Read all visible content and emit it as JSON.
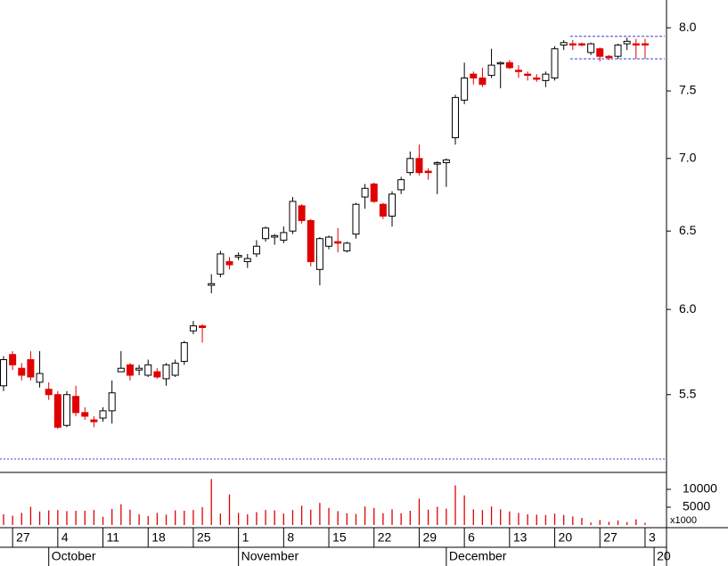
{
  "chart_data": {
    "type": "candlestick",
    "log_scale": true,
    "ylim": [
      5.08,
      8.23
    ],
    "yticks": [
      5.5,
      {
        "value": 6,
        "label": "6.0"
      },
      6.5,
      {
        "value": 7,
        "label": "7.0"
      },
      7.5,
      {
        "value": 8,
        "label": "8.0"
      }
    ],
    "up_color": "#ffffff",
    "down_color": "#e00000",
    "open": [
      5.55,
      5.73,
      5.65,
      5.7,
      5.57,
      5.53,
      5.5,
      5.33,
      5.49,
      5.4,
      5.36,
      5.37,
      5.41,
      5.63,
      5.67,
      5.64,
      5.61,
      5.63,
      5.59,
      5.61,
      5.69,
      5.87,
      5.9,
      6.15,
      6.22,
      6.3,
      6.33,
      6.3,
      6.35,
      6.45,
      6.46,
      6.44,
      6.5,
      6.67,
      6.57,
      6.25,
      6.4,
      6.43,
      6.37,
      6.48,
      6.73,
      6.82,
      6.68,
      6.6,
      6.78,
      6.9,
      7.0,
      6.91,
      6.96,
      6.97,
      7.15,
      7.43,
      7.63,
      7.6,
      7.62,
      7.71,
      7.72,
      7.66,
      7.63,
      7.6,
      7.58,
      7.6,
      7.86,
      7.87,
      7.87,
      7.8,
      7.83,
      7.77,
      7.77,
      7.87,
      7.87,
      7.87
    ],
    "high": [
      5.72,
      5.75,
      5.68,
      5.75,
      5.75,
      5.57,
      5.52,
      5.52,
      5.55,
      5.43,
      5.38,
      5.43,
      5.58,
      5.75,
      5.68,
      5.67,
      5.7,
      5.65,
      5.68,
      5.7,
      5.81,
      5.93,
      5.91,
      6.22,
      6.37,
      6.33,
      6.36,
      6.35,
      6.44,
      6.53,
      6.48,
      6.53,
      6.73,
      6.68,
      6.58,
      6.46,
      6.47,
      6.52,
      6.43,
      6.69,
      6.82,
      6.83,
      6.69,
      6.77,
      6.87,
      7.05,
      7.1,
      6.93,
      6.98,
      7.0,
      7.47,
      7.72,
      7.65,
      7.68,
      7.83,
      7.73,
      7.74,
      7.7,
      7.65,
      7.63,
      7.65,
      7.85,
      7.9,
      7.9,
      7.88,
      7.88,
      7.84,
      7.78,
      7.87,
      7.92,
      7.91,
      7.91
    ],
    "low": [
      5.52,
      5.64,
      5.58,
      5.58,
      5.54,
      5.47,
      5.31,
      5.32,
      5.38,
      5.36,
      5.32,
      5.35,
      5.34,
      5.63,
      5.58,
      5.61,
      5.6,
      5.59,
      5.55,
      5.6,
      5.67,
      5.85,
      5.8,
      6.1,
      6.2,
      6.25,
      6.31,
      6.26,
      6.33,
      6.43,
      6.41,
      6.42,
      6.48,
      6.55,
      6.27,
      6.15,
      6.38,
      6.36,
      6.36,
      6.45,
      6.65,
      6.69,
      6.58,
      6.53,
      6.75,
      6.88,
      6.88,
      6.85,
      6.75,
      6.8,
      7.1,
      7.4,
      7.55,
      7.53,
      7.6,
      7.52,
      7.67,
      7.6,
      7.58,
      7.57,
      7.53,
      7.58,
      7.82,
      7.82,
      7.85,
      7.78,
      7.73,
      7.74,
      7.75,
      7.82,
      7.75,
      7.75
    ],
    "close": [
      5.7,
      5.67,
      5.61,
      5.6,
      5.62,
      5.5,
      5.32,
      5.5,
      5.4,
      5.38,
      5.35,
      5.41,
      5.51,
      5.65,
      5.61,
      5.65,
      5.67,
      5.6,
      5.67,
      5.68,
      5.8,
      5.9,
      5.89,
      6.16,
      6.35,
      6.28,
      6.34,
      6.32,
      6.4,
      6.52,
      6.47,
      6.49,
      6.7,
      6.57,
      6.3,
      6.45,
      6.46,
      6.42,
      6.42,
      6.68,
      6.79,
      6.7,
      6.6,
      6.75,
      6.85,
      7.0,
      6.9,
      6.9,
      6.97,
      6.99,
      7.45,
      7.6,
      7.6,
      7.55,
      7.7,
      7.72,
      7.68,
      7.65,
      7.62,
      7.59,
      7.63,
      7.83,
      7.88,
      7.86,
      7.86,
      7.87,
      7.77,
      7.76,
      7.86,
      7.89,
      7.86,
      7.86
    ],
    "channel_levels": [
      7.75,
      7.93
    ],
    "support_level": 5.15,
    "volume": [
      3000,
      2600,
      3400,
      5100,
      3800,
      4100,
      4200,
      3900,
      4000,
      4000,
      4200,
      2300,
      4500,
      5800,
      4300,
      3000,
      2500,
      3400,
      2900,
      4100,
      4000,
      4200,
      5000,
      12900,
      3200,
      8600,
      3400,
      3000,
      3600,
      4200,
      4100,
      3200,
      4200,
      5400,
      4300,
      6200,
      4800,
      3900,
      3300,
      3100,
      5200,
      4800,
      3300,
      4400,
      3300,
      4000,
      7400,
      4300,
      5100,
      4600,
      11100,
      8300,
      4400,
      4200,
      5200,
      4400,
      3800,
      3400,
      3000,
      2900,
      2800,
      3200,
      2800,
      2400,
      2000,
      700,
      1400,
      900,
      1300,
      800,
      1600,
      600
    ],
    "volume_ylim": [
      0,
      14750
    ],
    "volume_yticks": [
      5000,
      10000
    ],
    "volume_unit": "x1000",
    "xticks": [
      {
        "value": 1,
        "label": "27"
      },
      {
        "value": 6,
        "label": "4"
      },
      {
        "value": 11,
        "label": "11"
      },
      {
        "value": 16,
        "label": "18"
      },
      {
        "value": 21,
        "label": "25"
      },
      {
        "value": 26,
        "label": "1"
      },
      {
        "value": 31,
        "label": "8"
      },
      {
        "value": 36,
        "label": "15"
      },
      {
        "value": 41,
        "label": "22"
      },
      {
        "value": 46,
        "label": "29"
      },
      {
        "value": 51,
        "label": "6"
      },
      {
        "value": 56,
        "label": "13"
      },
      {
        "value": 61,
        "label": "20"
      },
      {
        "value": 66,
        "label": "27"
      },
      {
        "value": 71,
        "label": "3"
      }
    ],
    "months": [
      {
        "value": 5,
        "label": "October"
      },
      {
        "value": 26,
        "label": "November"
      },
      {
        "value": 49,
        "label": "December"
      },
      {
        "value": 72,
        "label": "20"
      }
    ]
  }
}
